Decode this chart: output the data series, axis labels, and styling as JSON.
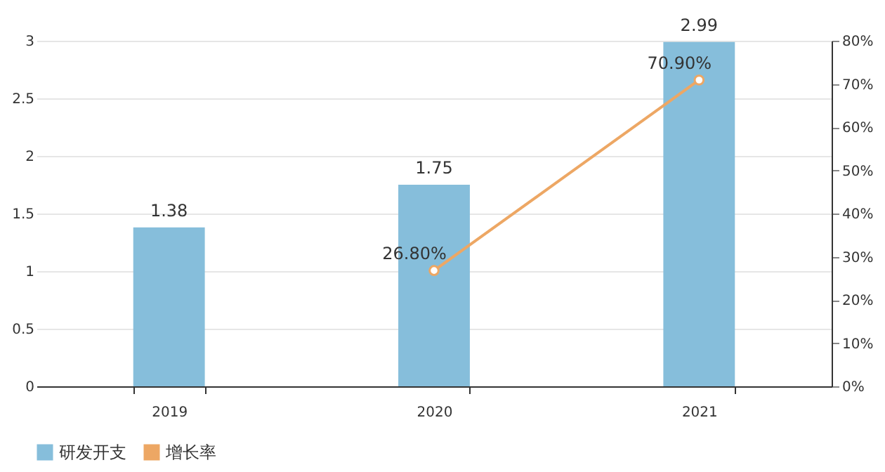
{
  "chart_data": {
    "type": "bar",
    "categories": [
      "2019",
      "2020",
      "2021"
    ],
    "series": [
      {
        "name": "研发开支",
        "color": "#86bedb",
        "values": [
          1.38,
          1.75,
          2.99
        ],
        "value_labels": [
          "1.38",
          "1.75",
          "2.99"
        ]
      },
      {
        "name": "增长率",
        "type": "line",
        "axis": "y2",
        "color": "#eda764",
        "values": [
          null,
          26.8,
          70.9
        ],
        "value_labels": [
          null,
          "26.80%",
          "70.90%"
        ]
      }
    ],
    "ylim": [
      0,
      3
    ],
    "yticks": [
      0,
      0.5,
      1,
      1.5,
      2,
      2.5,
      3
    ],
    "y2lim": [
      0,
      80
    ],
    "y2ticks": [
      {
        "value": 0,
        "label": "0%"
      },
      {
        "value": 10,
        "label": "10%"
      },
      {
        "value": 20,
        "label": "20%"
      },
      {
        "value": 30,
        "label": "30%"
      },
      {
        "value": 40,
        "label": "40%"
      },
      {
        "value": 50,
        "label": "50%"
      },
      {
        "value": 60,
        "label": "60%"
      },
      {
        "value": 70,
        "label": "70%"
      },
      {
        "value": 80,
        "label": "80%"
      }
    ],
    "grid": "y",
    "legend": "bottom",
    "marker": "circle",
    "line_style": "solid"
  }
}
